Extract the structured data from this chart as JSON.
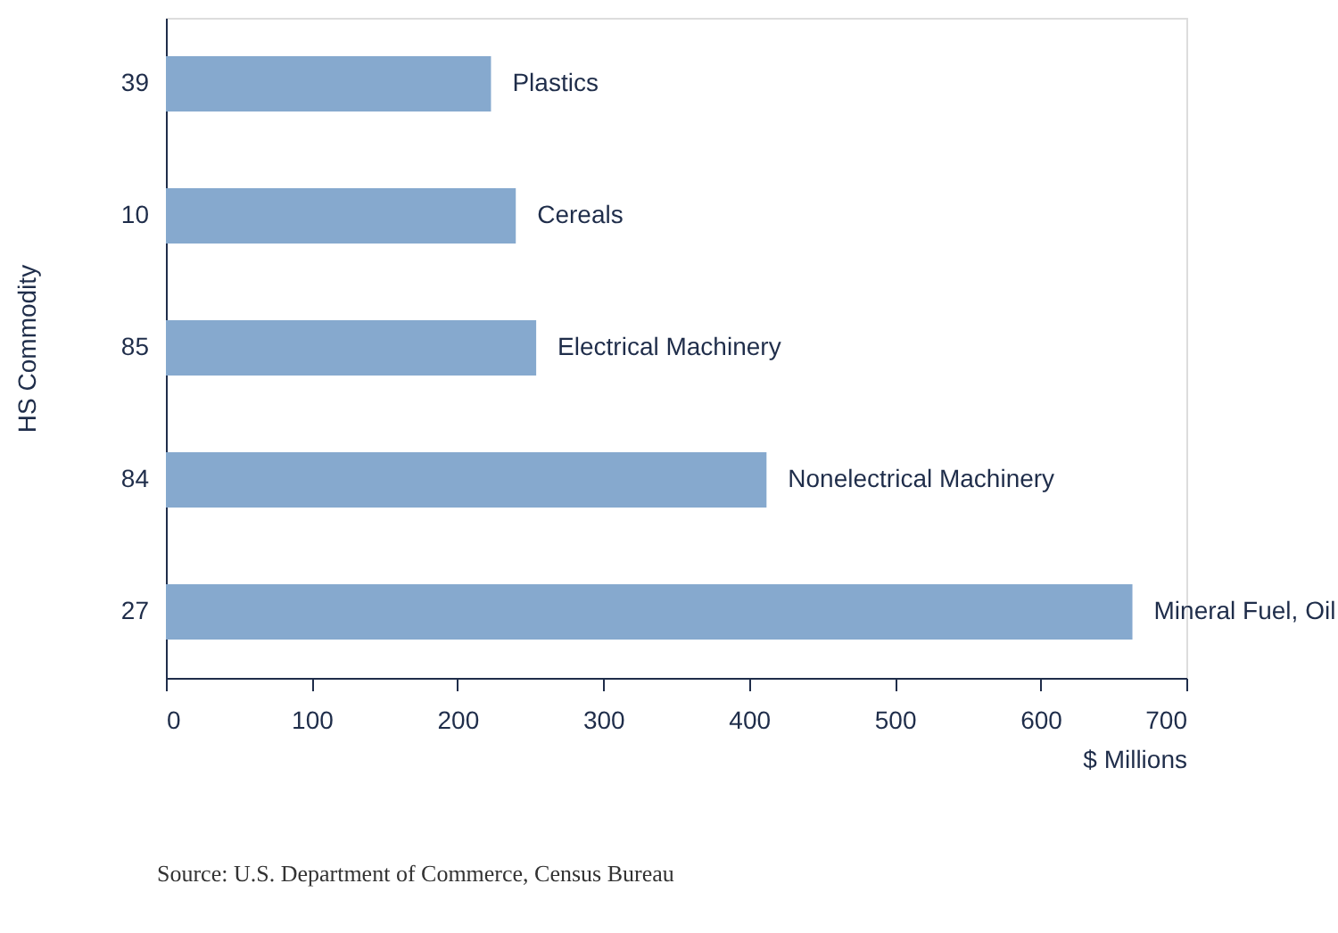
{
  "chart_data": {
    "type": "bar",
    "orientation": "horizontal",
    "categories": [
      "39",
      "10",
      "85",
      "84",
      "27"
    ],
    "values": [
      223,
      240,
      254,
      412,
      663
    ],
    "color": "#86a9ce",
    "xlim": [
      0,
      700
    ],
    "xticks": [
      0,
      100,
      200,
      300,
      400,
      500,
      600,
      700
    ],
    "xlabel": "$ Millions",
    "ylabel": "HS Commodity",
    "grid": false,
    "annotations": [
      {
        "text": "Plastics",
        "x": 223,
        "y": "39"
      },
      {
        "text": "Cereals",
        "x": 240,
        "y": "10"
      },
      {
        "text": "Electrical Machinery",
        "x": 254,
        "y": "85"
      },
      {
        "text": "Nonelectrical Machinery",
        "x": 412,
        "y": "84"
      },
      {
        "text": "Mineral Fuel, Oil",
        "x": 663,
        "y": "27"
      },
      "Source: U.S. Department of Commerce, Census Bureau"
    ]
  }
}
